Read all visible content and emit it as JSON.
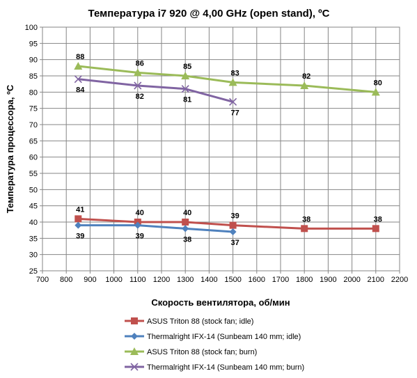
{
  "chart_data": {
    "type": "line",
    "title": "Температура i7 920 @ 4,00 GHz (open stand), ºC",
    "xlabel": "Скорость вентилятора, об/мин",
    "ylabel": "Температура процессора, ºC",
    "xlim": [
      700,
      2200
    ],
    "ylim": [
      25,
      100
    ],
    "xticks": [
      700,
      800,
      900,
      1000,
      1100,
      1200,
      1300,
      1400,
      1500,
      1600,
      1700,
      1800,
      1900,
      2000,
      2100,
      2200
    ],
    "yticks": [
      25,
      30,
      35,
      40,
      45,
      50,
      55,
      60,
      65,
      70,
      75,
      80,
      85,
      90,
      95,
      100
    ],
    "grid": true,
    "legend_position": "bottom",
    "series": [
      {
        "name": "ASUS Triton 88 (stock fan; idle)",
        "color": "#c0504d",
        "marker": "square",
        "label_side": "above",
        "points": [
          [
            850,
            41
          ],
          [
            1100,
            40
          ],
          [
            1300,
            40
          ],
          [
            1500,
            39
          ],
          [
            1800,
            38
          ],
          [
            2100,
            38
          ]
        ]
      },
      {
        "name": "Thermalright IFX-14 (Sunbeam 140 mm; idle)",
        "color": "#4f81bd",
        "marker": "diamond",
        "label_side": "below",
        "points": [
          [
            850,
            39
          ],
          [
            1100,
            39
          ],
          [
            1300,
            38
          ],
          [
            1500,
            37
          ]
        ]
      },
      {
        "name": "ASUS Triton 88 (stock fan; burn)",
        "color": "#9bbb59",
        "marker": "triangle",
        "label_side": "above",
        "points": [
          [
            850,
            88
          ],
          [
            1100,
            86
          ],
          [
            1300,
            85
          ],
          [
            1500,
            83
          ],
          [
            1800,
            82
          ],
          [
            2100,
            80
          ]
        ]
      },
      {
        "name": "Thermalright IFX-14 (Sunbeam 140 mm; burn)",
        "color": "#8064a2",
        "marker": "x",
        "label_side": "below",
        "points": [
          [
            850,
            84
          ],
          [
            1100,
            82
          ],
          [
            1300,
            81
          ],
          [
            1500,
            77
          ]
        ]
      }
    ]
  }
}
